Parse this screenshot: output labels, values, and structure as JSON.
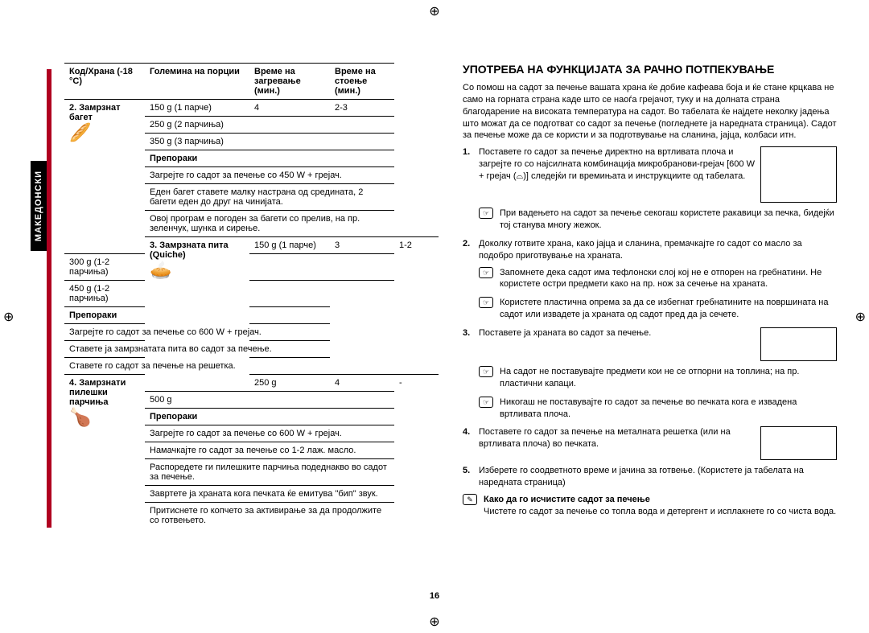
{
  "sidetab": "МАКЕДОНСКИ",
  "pagenum": "16",
  "table": {
    "headers": {
      "code": "Код/Храна\n(-18 °C)",
      "portion": "Големина на порции",
      "heat": "Време на\nзагревање (мин.)",
      "stand": "Време на стоење\n(мин.)"
    },
    "rec_label": "Препораки",
    "items": [
      {
        "code": "2. Замрзнат багет",
        "icon": "🥖",
        "rows": [
          [
            "150 g (1 парче)",
            "4",
            "2-3"
          ],
          [
            "250 g (2 парчиња)",
            "",
            ""
          ],
          [
            "350 g (3 парчиња)",
            "",
            ""
          ]
        ],
        "rec": [
          "Загрејте го садот за печење со 450 W + грејач.",
          "Еден багет ставете малку настрана од средината, 2 багети еден до друг на чинијата.",
          "Овој програм е погоден за багети со прелив, на пр. зеленчук, шунка и сирење."
        ]
      },
      {
        "code": "3. Замрзната пита (Quiche)",
        "icon": "🥧",
        "rows": [
          [
            "150 g (1 парче)",
            "3",
            "1-2"
          ],
          [
            "300 g (1-2 парчиња)",
            "",
            ""
          ],
          [
            "450 g (1-2 парчиња)",
            "",
            ""
          ]
        ],
        "rec": [
          "Загрејте го садот за печење со 600 W + грејач.",
          "Ставете ја замрзнатата пита во садот за печење.",
          "Ставете го садот за печење на решетка."
        ]
      },
      {
        "code": "4. Замрзнати пилешки парчиња",
        "icon": "🍗",
        "rows": [
          [
            "250 g",
            "4",
            "-"
          ],
          [
            "500 g",
            "",
            ""
          ]
        ],
        "rec": [
          "Загрејте го садот за печење со 600 W + грејач.",
          "Намачкајте го садот за печење со 1-2 лаж. масло.",
          "Распоредете ги пилешките парчиња подеднакво во садот за печење.",
          "Завртете ја храната кога печката ќе емитува \"бип\" звук.",
          "Притиснете го копчето за активирање за да продолжите со готвењето."
        ]
      }
    ]
  },
  "right": {
    "title": "УПОТРЕБА НА ФУНКЦИЈАТА ЗА РАЧНО ПОТПЕКУВАЊЕ",
    "intro": "Со помош на садот за печење вашата храна ќе добие кафеава боја и ќе стане крцкава не само на горната страна каде што се наоѓа грејачот, туку и на долната страна благодарение на високата температура на садот. Во табелата ќе најдете неколку јадења што можат да се подготват со садот за печење (погледнете ја наредната страница). Садот за печење може да се користи и за подготвување на сланина, јајца, колбаси итн.",
    "steps": [
      {
        "n": "1.",
        "text": "Поставете го садот за печење директно на вртливата плоча и загрејте го со најсилната комбинација микробранови-грејач [600 W + грејач (⌓)] следејќи ги времињата и инструкциите од табелата.",
        "hasDiagram": true,
        "notes": [
          "При вадењето на садот за печење секогаш користете ракавици за печка, бидејќи тој станува многу жежок."
        ]
      },
      {
        "n": "2.",
        "text": "Доколку готвите храна, како јајца и сланина, премачкајте го садот со масло за подобро приготвување на храната.",
        "notes": [
          "Запомнете дека садот има тефлонски слој кој не е отпорен на гребнатини. Не користете остри предмети како на пр. нож за сечење на храната.",
          "Користете пластична опрема за да се избегнат гребнатините на површината на садот или извадете ја храната од садот пред да ја сечете."
        ]
      },
      {
        "n": "3.",
        "text": "Поставете ја храната во садот за печење.",
        "hasDiagram": true,
        "notes": [
          "На садот не поставувајте предмети кои не се отпорни на топлина; на пр. пластични капаци.",
          "Никогаш не поставувајте го садот за печење во печката кога е извадена вртливата плоча."
        ]
      },
      {
        "n": "4.",
        "text": "Поставете го садот за печење на металната решетка (или на вртливата плоча) во печката.",
        "hasDiagram": true
      },
      {
        "n": "5.",
        "text": "Изберете го соодветното време и јачина за готвење. (Користете ја табелата на наредната страница)"
      }
    ],
    "clean_title": "Како да го исчистите садот за печење",
    "clean_text": "Чистете го садот за печење со топла вода и детергент и исплакнете го со чиста вода."
  }
}
